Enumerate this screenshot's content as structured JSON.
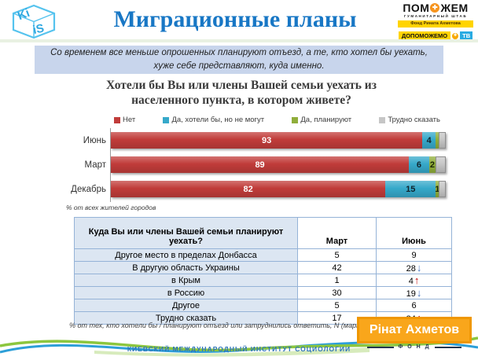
{
  "header": {
    "kiis_logo": {
      "top": "Ki",
      "bottom": "iS"
    },
    "title": "Миграционные планы",
    "pomozhem": {
      "name_pre": "ПОМ",
      "cross": "✚",
      "name_post": "ЖЕМ",
      "subtitle": "ГУМАНИТАРНЫЙ ШТАБ",
      "fond_line": "Фонд Рината Ахметова",
      "dopomozhemo": "ДОПОМОЖЕМО",
      "tv": "ТВ"
    }
  },
  "banner": {
    "text": "Со временем все меньше опрошенных планируют отъезд, а те, кто хотел бы уехать, хуже себе представляют, куда именно."
  },
  "chart_data": {
    "type": "bar",
    "orientation": "horizontal",
    "stacked": true,
    "title": "Хотели бы Вы или члены Вашей семьи уехать из населенного пункта, в котором живете?",
    "categories": [
      "Июнь",
      "Март",
      "Декабрь"
    ],
    "legend": [
      "Нет",
      "Да, хотели бы, но не могут",
      "Да, планируют",
      "Трудно сказать"
    ],
    "legend_position": "top",
    "xlim": [
      0,
      100
    ],
    "grid": false,
    "series": [
      {
        "name": "Нет",
        "color": "#c13c3a",
        "label_color": "#ffffff",
        "values": [
          93,
          89,
          82
        ],
        "labels": [
          "93",
          "89",
          "82"
        ]
      },
      {
        "name": "Да, хотели бы, но не могут",
        "color": "#36a9ca",
        "label_color": "#10232b",
        "values": [
          4,
          6,
          15
        ],
        "labels": [
          "4",
          "6",
          "15"
        ]
      },
      {
        "name": "Да, планируют",
        "color": "#90ae3b",
        "label_color": "#1c2508",
        "values": [
          1,
          2,
          1
        ],
        "labels": [
          "",
          "2",
          "1"
        ]
      },
      {
        "name": "Трудно сказать",
        "color": "#c6c6c6",
        "label_color": "#333333",
        "values": [
          2,
          3,
          2
        ],
        "labels": [
          "",
          "",
          ""
        ]
      }
    ],
    "footnote": "% от всех жителей городов"
  },
  "table": {
    "columns": [
      "Куда Вы или члены Вашей семьи планируют уехать?",
      "Март",
      "Июнь"
    ],
    "rows": [
      {
        "label": "Другое место в пределах Донбасса",
        "mart": "5",
        "iyun": "9",
        "trend": ""
      },
      {
        "label": "В другую область Украины",
        "mart": "42",
        "iyun": "28",
        "trend": "down"
      },
      {
        "label": "в Крым",
        "mart": "1",
        "iyun": "4",
        "trend": "up"
      },
      {
        "label": "в Россию",
        "mart": "30",
        "iyun": "19",
        "trend": "down"
      },
      {
        "label": "Другое",
        "mart": "5",
        "iyun": "6",
        "trend": ""
      },
      {
        "label": "Трудно сказать",
        "mart": "17",
        "iyun": "34",
        "trend": "up"
      }
    ],
    "footnote": "% от тех, кто хотели бы / планируют отъезд или затруднились ответить, N (март) ="
  },
  "footer": {
    "institute": "КИЕВСКИЙ МЕЖДУНАРОДНЫЙ ИНСТИТУТ СОЦИОЛОГИИ",
    "akhmetov": {
      "name": "Рінат Ахметов",
      "fond": "Ф О Н Д"
    }
  },
  "colors": {
    "accent_title": "#1877c5",
    "banner_bg": "#c8d5ec",
    "table_border": "#95b3d7",
    "table_label_bg": "#dce6f2",
    "arrow_up": "#c00000",
    "arrow_down": "#4674c1",
    "wave_green": "#8cc63e",
    "wave_blue": "#2d9fd8"
  }
}
